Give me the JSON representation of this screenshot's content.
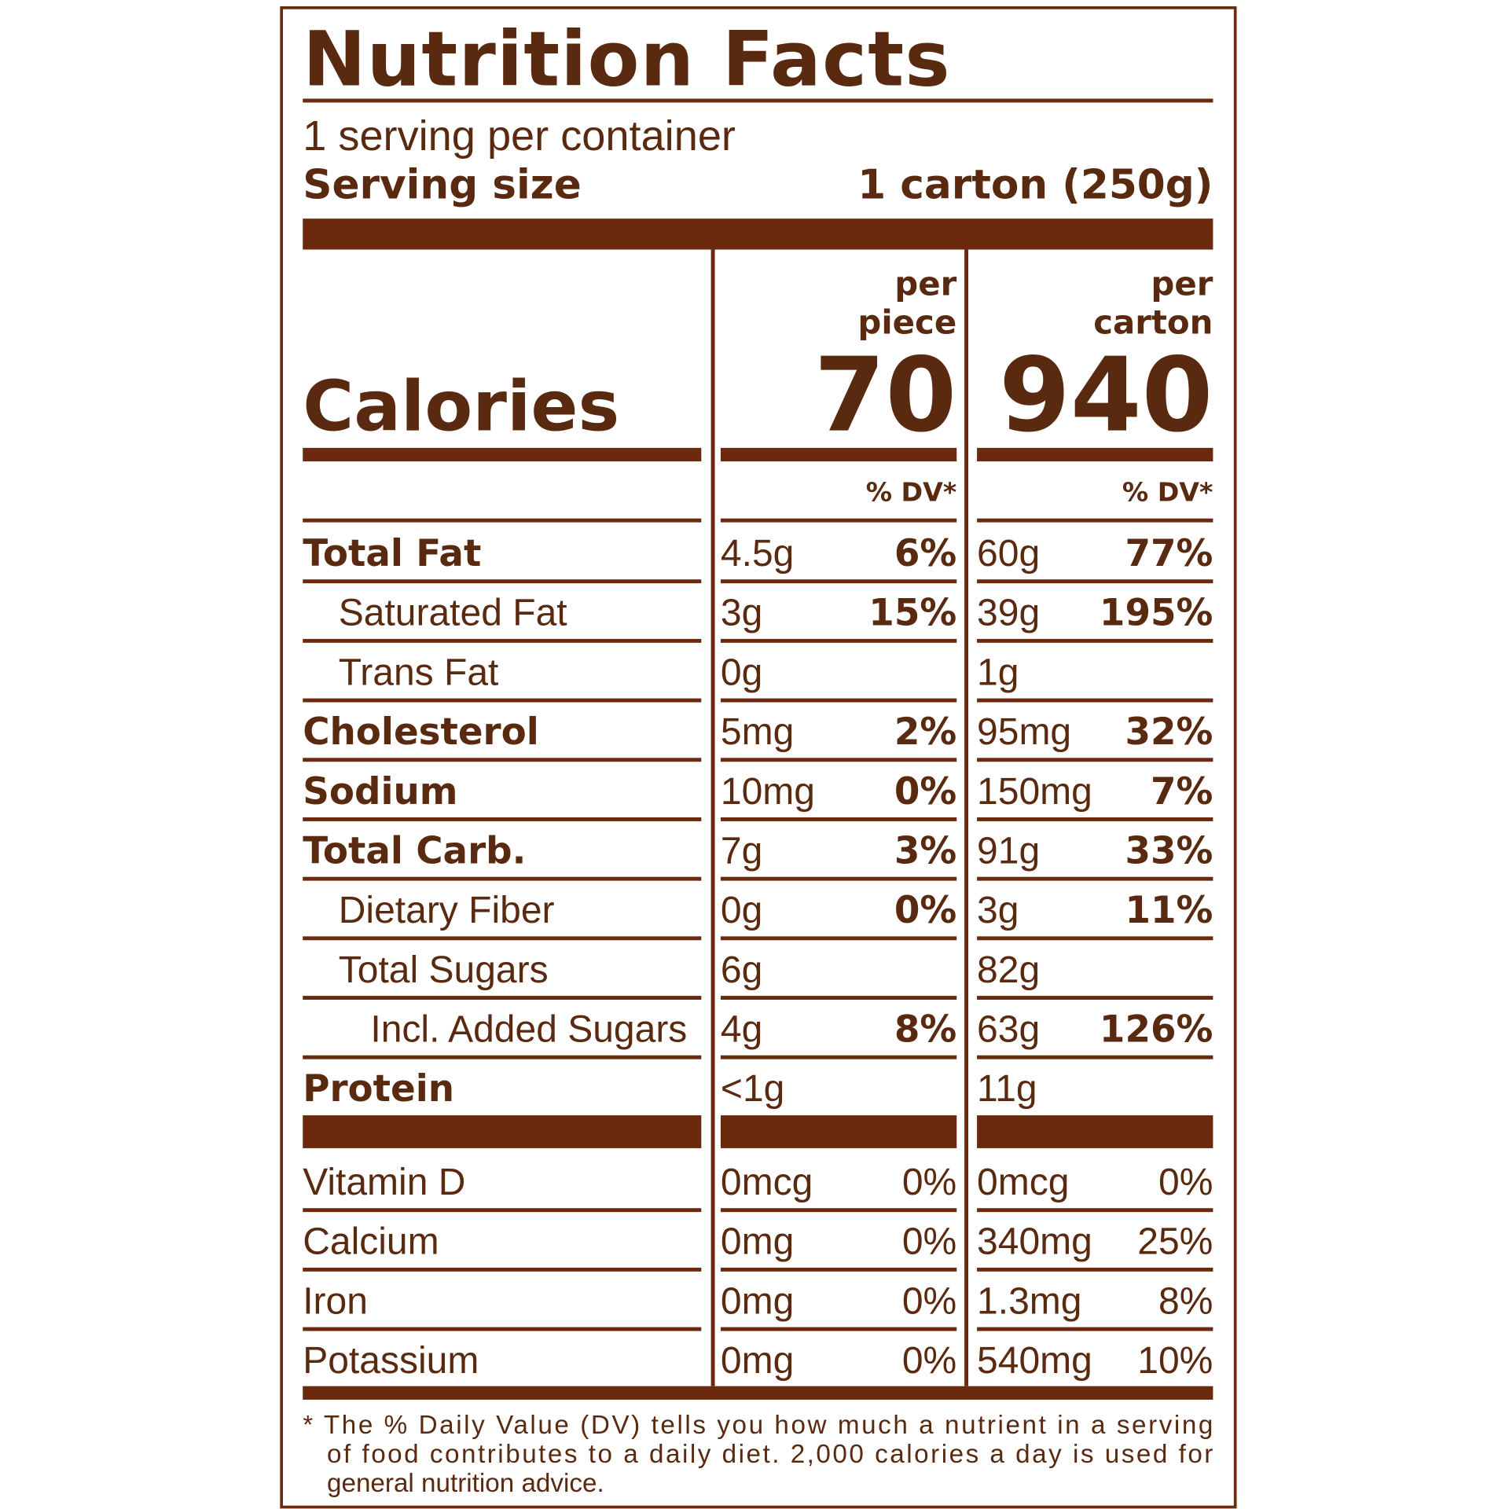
{
  "title": "Nutrition Facts",
  "servings": "1 serving per container",
  "serving_size": {
    "label": "Serving size",
    "value": "1 carton (250g)"
  },
  "calories": {
    "label": "Calories",
    "columns": [
      {
        "header": [
          "per",
          "piece"
        ],
        "value": "70",
        "dv_header": "% DV*"
      },
      {
        "header": [
          "per",
          "carton"
        ],
        "value": "940",
        "dv_header": "% DV*"
      }
    ]
  },
  "nutrients": [
    {
      "name": "Total Fat",
      "level": 0,
      "bold": true,
      "piece": [
        "4.5g",
        "6%"
      ],
      "carton": [
        "60g",
        "77%"
      ]
    },
    {
      "name": "Saturated Fat",
      "level": 1,
      "bold": false,
      "piece": [
        "3g",
        "15%"
      ],
      "carton": [
        "39g",
        "195%"
      ]
    },
    {
      "name": "Trans Fat",
      "level": 1,
      "bold": false,
      "piece": [
        "0g"
      ],
      "carton": [
        "1g"
      ]
    },
    {
      "name": "Cholesterol",
      "level": 0,
      "bold": true,
      "piece": [
        "5mg",
        "2%"
      ],
      "carton": [
        "95mg",
        "32%"
      ]
    },
    {
      "name": "Sodium",
      "level": 0,
      "bold": true,
      "piece": [
        "10mg",
        "0%"
      ],
      "carton": [
        "150mg",
        "7%"
      ]
    },
    {
      "name": "Total Carb.",
      "level": 0,
      "bold": true,
      "piece": [
        "7g",
        "3%"
      ],
      "carton": [
        "91g",
        "33%"
      ]
    },
    {
      "name": "Dietary Fiber",
      "level": 1,
      "bold": false,
      "piece": [
        "0g",
        "0%"
      ],
      "carton": [
        "3g",
        "11%"
      ]
    },
    {
      "name": "Total Sugars",
      "level": 1,
      "bold": false,
      "piece": [
        "6g"
      ],
      "carton": [
        "82g"
      ]
    },
    {
      "name": "Incl. Added Sugars",
      "level": 2,
      "bold": false,
      "piece": [
        "4g",
        "8%"
      ],
      "carton": [
        "63g",
        "126%"
      ]
    },
    {
      "name": "Protein",
      "level": 0,
      "bold": true,
      "piece": [
        "<1g"
      ],
      "carton": [
        "11g"
      ]
    }
  ],
  "vitamins": [
    {
      "name": "Vitamin D",
      "piece": [
        "0mcg",
        "0%"
      ],
      "carton": [
        "0mcg",
        "0%"
      ]
    },
    {
      "name": "Calcium",
      "piece": [
        "0mg",
        "0%"
      ],
      "carton": [
        "340mg",
        "25%"
      ]
    },
    {
      "name": "Iron",
      "piece": [
        "0mg",
        "0%"
      ],
      "carton": [
        "1.3mg",
        "8%"
      ]
    },
    {
      "name": "Potassium",
      "piece": [
        "0mg",
        "0%"
      ],
      "carton": [
        "540mg",
        "10%"
      ]
    }
  ],
  "footnote": [
    "* The % Daily Value (DV) tells you how much a nutrient in a serving",
    "of food contributes to a daily diet. 2,000 calories a day is used for",
    "general nutrition advice."
  ]
}
